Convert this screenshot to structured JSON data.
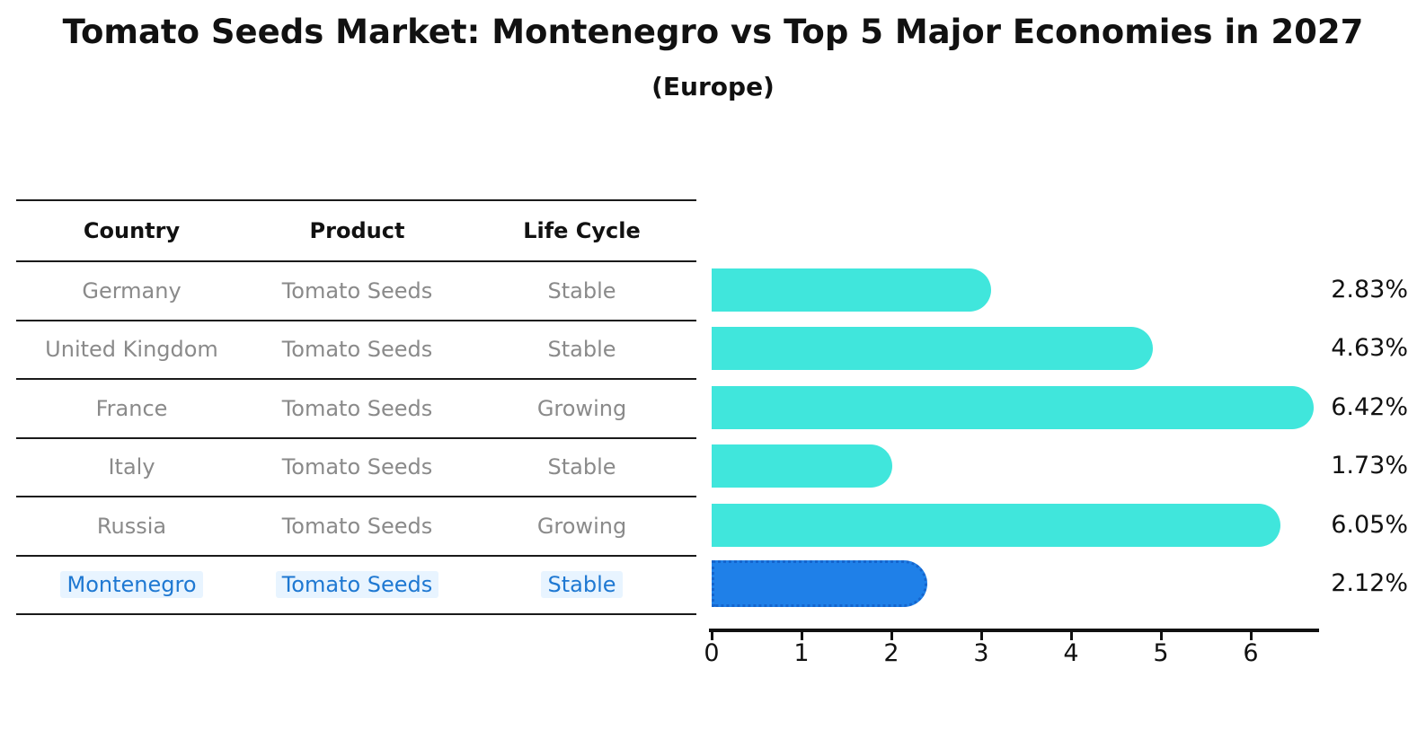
{
  "chart": {
    "title": "Tomato Seeds Market: Montenegro vs Top 5 Major Economies in 2027",
    "subtitle": "(Europe)"
  },
  "table": {
    "headers": [
      "Country",
      "Product",
      "Life Cycle"
    ]
  },
  "rows": [
    {
      "country": "Germany",
      "product": "Tomato Seeds",
      "life_cycle": "Stable",
      "value": 2.83,
      "value_label": "2.83%",
      "highlight": false
    },
    {
      "country": "United Kingdom",
      "product": "Tomato Seeds",
      "life_cycle": "Stable",
      "value": 4.63,
      "value_label": "4.63%",
      "highlight": false
    },
    {
      "country": "France",
      "product": "Tomato Seeds",
      "life_cycle": "Growing",
      "value": 6.42,
      "value_label": "6.42%",
      "highlight": false
    },
    {
      "country": "Italy",
      "product": "Tomato Seeds",
      "life_cycle": "Stable",
      "value": 1.73,
      "value_label": "1.73%",
      "highlight": false
    },
    {
      "country": "Russia",
      "product": "Tomato Seeds",
      "life_cycle": "Growing",
      "value": 6.05,
      "value_label": "6.05%",
      "highlight": false
    },
    {
      "country": "Montenegro",
      "product": "Tomato Seeds",
      "life_cycle": "Stable",
      "value": 2.12,
      "value_label": "2.12%",
      "highlight": true
    }
  ],
  "axis": {
    "tick_labels": [
      "0",
      "1",
      "2",
      "3",
      "4",
      "5",
      "6"
    ]
  },
  "colors": {
    "bar": "#40E6DC",
    "highlight_bar_fill": "#1F80E8",
    "highlight_bar_border": "#1565CD",
    "highlight_text": "#1E78D2",
    "body_text": "#8A8A8A",
    "heading_text": "#111111"
  },
  "chart_data": {
    "type": "bar",
    "orientation": "horizontal",
    "title": "Tomato Seeds Market: Montenegro vs Top 5 Major Economies in 2027",
    "subtitle": "(Europe)",
    "categories": [
      "Germany",
      "United Kingdom",
      "France",
      "Italy",
      "Russia",
      "Montenegro"
    ],
    "values": [
      2.83,
      4.63,
      6.42,
      1.73,
      6.05,
      2.12
    ],
    "value_labels": [
      "2.83%",
      "4.63%",
      "6.42%",
      "1.73%",
      "6.05%",
      "2.12%"
    ],
    "xlim": [
      0,
      6.8
    ],
    "x_ticks": [
      0,
      1,
      2,
      3,
      4,
      5,
      6
    ],
    "grid": false,
    "legend": false,
    "highlighted_category": "Montenegro",
    "row_meta": {
      "product": [
        "Tomato Seeds",
        "Tomato Seeds",
        "Tomato Seeds",
        "Tomato Seeds",
        "Tomato Seeds",
        "Tomato Seeds"
      ],
      "life_cycle": [
        "Stable",
        "Stable",
        "Growing",
        "Stable",
        "Growing",
        "Stable"
      ]
    }
  }
}
